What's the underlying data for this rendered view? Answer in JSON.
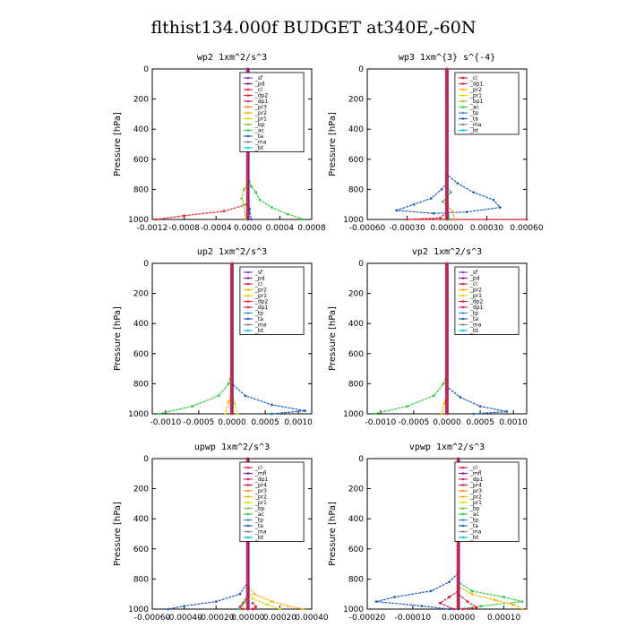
{
  "title": "flthist134.000f  BUDGET at340E,-60N",
  "series_colors": {
    "_sf": "#7f3fbf",
    "_pd": "#7a1fa2",
    "_cl": "#e8202a",
    "_mfl": "#7a1fa2",
    "_dp2": "#e8202a",
    "_dp1": "#d4226a",
    "_pr4": "#c81e3c",
    "_pr3": "#ff8c1a",
    "_pr2": "#ffb000",
    "_pr1": "#e6d800",
    "_bp1": "#9acd32",
    "_bp": "#7ccd32",
    "_ac": "#2ecc40",
    "_tp": "#3a8fd8",
    "_ta": "#1f5fbf",
    "_ma": "#888888",
    "_bt": "#00c8e8"
  },
  "chart_data": [
    {
      "type": "line",
      "title": "wp2  1xm^2/s^3",
      "ylabel": "Pressure  [hPa]",
      "xlim": [
        -0.0012,
        0.0008
      ],
      "ylim": [
        1000,
        0
      ],
      "xticks": [
        "-0.0012",
        "-0.0008",
        "-0.0004",
        "0.0000",
        "0.0004",
        "0.0008"
      ],
      "xtick_values": [
        -0.0012,
        -0.0008,
        -0.0004,
        0.0,
        0.0004,
        0.0008
      ],
      "yticks": [
        "0",
        "200",
        "400",
        "600",
        "800",
        "1000"
      ],
      "legend": [
        "_sf",
        "_pd",
        "_cl",
        "_dp2",
        "_dp1",
        "_pr3",
        "_pr2",
        "_pr1",
        "_bp",
        "_ac",
        "_ta",
        "_ma",
        "_bt"
      ],
      "legend_position": "top-right",
      "series": [
        {
          "name": "_cl",
          "points": [
            [
              0,
              0
            ],
            [
              0,
              700
            ],
            [
              -1e-05,
              900
            ],
            [
              -0.0003,
              945
            ],
            [
              -0.0008,
              975
            ],
            [
              -0.00115,
              1000
            ]
          ]
        },
        {
          "name": "_ac",
          "points": [
            [
              0,
              0
            ],
            [
              0,
              700
            ],
            [
              4e-05,
              780
            ],
            [
              0.0001,
              820
            ],
            [
              0.00015,
              870
            ],
            [
              0.0003,
              920
            ],
            [
              0.0005,
              965
            ],
            [
              0.0007,
              1000
            ]
          ]
        },
        {
          "name": "_bp",
          "points": [
            [
              0,
              0
            ],
            [
              0,
              750
            ],
            [
              -5e-05,
              800
            ],
            [
              -8e-05,
              860
            ],
            [
              -5e-05,
              900
            ],
            [
              -3e-05,
              1000
            ]
          ]
        },
        {
          "name": "_ta",
          "points": [
            [
              0,
              0
            ],
            [
              0,
              850
            ],
            [
              2e-05,
              930
            ],
            [
              4e-05,
              1000
            ]
          ]
        },
        {
          "name": "_pd",
          "points": [
            [
              0,
              0
            ],
            [
              0,
              1000
            ]
          ]
        }
      ]
    },
    {
      "type": "line",
      "title": "wp3  1xm^{3} s^{-4}",
      "ylabel": "Pressure  [hPa]",
      "xlim": [
        -0.0006,
        0.0006
      ],
      "ylim": [
        1000,
        0
      ],
      "xticks": [
        "-0.00060",
        "-0.00030",
        "0.00000",
        "0.00030",
        "0.00060"
      ],
      "xtick_values": [
        -0.0006,
        -0.0003,
        0.0,
        0.0003,
        0.0006
      ],
      "yticks": [
        "0",
        "200",
        "400",
        "600",
        "800",
        "1000"
      ],
      "legend": [
        "_cl",
        "_dp1",
        "_pr2",
        "_pr1",
        "_bp1",
        "_ac",
        "_tp",
        "_ta",
        "_ma",
        "_bt"
      ],
      "legend_position": "top-right",
      "series": [
        {
          "name": "_ta",
          "points": [
            [
              0,
              0
            ],
            [
              0,
              700
            ],
            [
              8e-05,
              760
            ],
            [
              0.0002,
              820
            ],
            [
              0.00035,
              870
            ],
            [
              0.0004,
              920
            ],
            [
              0.00015,
              950
            ],
            [
              -0.0001,
              960
            ],
            [
              -0.00038,
              940
            ],
            [
              -0.00025,
              900
            ],
            [
              -0.00012,
              860
            ],
            [
              -4e-05,
              800
            ],
            [
              0,
              760
            ]
          ]
        },
        {
          "name": "_cl",
          "points": [
            [
              0,
              0
            ],
            [
              0,
              950
            ],
            [
              -5e-05,
              990
            ],
            [
              -0.0003,
              1000
            ],
            [
              0.0003,
              1000
            ],
            [
              0.0006,
              1000
            ]
          ]
        },
        {
          "name": "_ac",
          "points": [
            [
              0,
              0
            ],
            [
              0,
              780
            ],
            [
              3e-05,
              820
            ],
            [
              0.0,
              850
            ],
            [
              -3e-05,
              880
            ],
            [
              0,
              920
            ],
            [
              2e-05,
              1000
            ]
          ]
        },
        {
          "name": "_pr3",
          "points": [
            [
              0,
              0
            ],
            [
              0,
              900
            ],
            [
              4e-05,
              950
            ],
            [
              6e-05,
              1000
            ]
          ]
        },
        {
          "name": "_cl",
          "points": [
            [
              0,
              0
            ],
            [
              0,
              1000
            ]
          ]
        }
      ]
    },
    {
      "type": "line",
      "title": "up2  1xm^2/s^3",
      "ylabel": "Pressure  [hPa]",
      "xlim": [
        -0.0012,
        0.0012
      ],
      "ylim": [
        1000,
        0
      ],
      "xticks": [
        "-0.0010",
        "-0.0005",
        "0.0000",
        "0.0005",
        "0.0010"
      ],
      "xtick_values": [
        -0.001,
        -0.0005,
        0.0,
        0.0005,
        0.001
      ],
      "yticks": [
        "0",
        "200",
        "400",
        "600",
        "800",
        "1000"
      ],
      "legend": [
        "_sf",
        "_pd",
        "_cl",
        "_pr2",
        "_pr1",
        "_dp2",
        "_dp1",
        "_tp",
        "_ta",
        "_ma",
        "_bt"
      ],
      "legend_position": "top-right",
      "series": [
        {
          "name": "_ac",
          "points": [
            [
              0,
              0
            ],
            [
              0,
              700
            ],
            [
              -5e-05,
              800
            ],
            [
              -0.0002,
              880
            ],
            [
              -0.0006,
              950
            ],
            [
              -0.0011,
              1000
            ]
          ]
        },
        {
          "name": "_ta",
          "points": [
            [
              0,
              0
            ],
            [
              0,
              800
            ],
            [
              0.0002,
              880
            ],
            [
              0.0006,
              940
            ],
            [
              0.0011,
              980
            ],
            [
              0.0006,
              1000
            ]
          ]
        },
        {
          "name": "_pr2",
          "points": [
            [
              0,
              0
            ],
            [
              0,
              850
            ],
            [
              -5e-05,
              920
            ],
            [
              -0.0001,
              1000
            ]
          ]
        },
        {
          "name": "_pr1",
          "points": [
            [
              0,
              0
            ],
            [
              0,
              870
            ],
            [
              4e-05,
              930
            ],
            [
              8e-05,
              1000
            ]
          ]
        },
        {
          "name": "_cl",
          "points": [
            [
              0,
              0
            ],
            [
              0,
              1000
            ]
          ]
        }
      ]
    },
    {
      "type": "line",
      "title": "vp2  1xm^2/s^3",
      "ylabel": "Pressure  [hPa]",
      "xlim": [
        -0.0012,
        0.0012
      ],
      "ylim": [
        1000,
        0
      ],
      "xticks": [
        "-0.0010",
        "-0.0005",
        "0.0000",
        "0.0005",
        "0.0010"
      ],
      "xtick_values": [
        -0.001,
        -0.0005,
        0.0,
        0.0005,
        0.001
      ],
      "yticks": [
        "0",
        "200",
        "400",
        "600",
        "800",
        "1000"
      ],
      "legend": [
        "_sf",
        "_pd",
        "_cl",
        "_pr2",
        "_pr1",
        "_dp2",
        "_dp1",
        "_tp",
        "_ta",
        "_ma",
        "_bt"
      ],
      "legend_position": "top-right",
      "series": [
        {
          "name": "_ac",
          "points": [
            [
              0,
              0
            ],
            [
              0,
              720
            ],
            [
              -5e-05,
              800
            ],
            [
              -0.0002,
              880
            ],
            [
              -0.0006,
              950
            ],
            [
              -0.0011,
              1000
            ]
          ]
        },
        {
          "name": "_ta",
          "points": [
            [
              0,
              0
            ],
            [
              0,
              820
            ],
            [
              0.0002,
              890
            ],
            [
              0.0005,
              950
            ],
            [
              0.0009,
              985
            ],
            [
              0.0004,
              1000
            ]
          ]
        },
        {
          "name": "_pr2",
          "points": [
            [
              0,
              0
            ],
            [
              0,
              860
            ],
            [
              -4e-05,
              930
            ],
            [
              -8e-05,
              1000
            ]
          ]
        },
        {
          "name": "_cl",
          "points": [
            [
              0,
              0
            ],
            [
              0,
              1000
            ]
          ]
        }
      ]
    },
    {
      "type": "line",
      "title": "upwp  1xm^2/s^3",
      "ylabel": "Pressure  [hPa]",
      "xlim": [
        -0.0006,
        0.0004
      ],
      "ylim": [
        1000,
        0
      ],
      "xticks": [
        "-0.00060",
        "-0.00040",
        "-0.00020",
        "0.00000",
        "0.00020",
        "0.00040"
      ],
      "xtick_values": [
        -0.0006,
        -0.0004,
        -0.0002,
        0.0,
        0.0002,
        0.0004
      ],
      "yticks": [
        "0",
        "200",
        "400",
        "600",
        "800",
        "1000"
      ],
      "legend": [
        "_cl",
        "_mfl",
        "_dp1",
        "_pr4",
        "_pr3",
        "_pr2",
        "_pr1",
        "_bp",
        "_ac",
        "_tp",
        "_ta",
        "_ma",
        "_bt"
      ],
      "legend_position": "top-right",
      "series": [
        {
          "name": "_ta",
          "points": [
            [
              0,
              0
            ],
            [
              0,
              820
            ],
            [
              -5e-05,
              900
            ],
            [
              -0.0002,
              950
            ],
            [
              -0.0004,
              980
            ],
            [
              -0.0005,
              1000
            ]
          ]
        },
        {
          "name": "_pr2",
          "points": [
            [
              0,
              0
            ],
            [
              0,
              850
            ],
            [
              4e-05,
              900
            ],
            [
              0.00015,
              950
            ],
            [
              0.00025,
              980
            ],
            [
              0.00035,
              1000
            ]
          ]
        },
        {
          "name": "_pr1",
          "points": [
            [
              0,
              0
            ],
            [
              0,
              880
            ],
            [
              3e-05,
              930
            ],
            [
              0.00012,
              970
            ],
            [
              0.0002,
              1000
            ]
          ]
        },
        {
          "name": "_cl",
          "points": [
            [
              0,
              0
            ],
            [
              0,
              900
            ],
            [
              -3e-05,
              960
            ],
            [
              -5e-05,
              985
            ],
            [
              -3e-05,
              1000
            ],
            [
              3e-05,
              1000
            ],
            [
              5e-05,
              985
            ],
            [
              3e-05,
              960
            ]
          ]
        },
        {
          "name": "_ac",
          "points": [
            [
              0,
              0
            ],
            [
              0,
              900
            ],
            [
              -2e-05,
              950
            ],
            [
              -5e-05,
              1000
            ]
          ]
        },
        {
          "name": "_mfl",
          "points": [
            [
              0,
              0
            ],
            [
              0,
              1000
            ]
          ]
        }
      ]
    },
    {
      "type": "line",
      "title": "vpwp  1xm^2/s^3",
      "ylabel": "Pressure  [hPa]",
      "xlim": [
        -0.0002,
        0.00015
      ],
      "ylim": [
        1000,
        0
      ],
      "xticks": [
        "-0.00020",
        "-0.00010",
        "0.00000",
        "0.00010"
      ],
      "xtick_values": [
        -0.0002,
        -0.0001,
        0.0,
        0.0001
      ],
      "yticks": [
        "0",
        "200",
        "400",
        "600",
        "800",
        "1000"
      ],
      "legend": [
        "_cl",
        "_mfl",
        "_dp1",
        "_pr4",
        "_pr3",
        "_pr2",
        "_pr1",
        "_bp",
        "_ac",
        "_tp",
        "_ta",
        "_ma",
        "_bt"
      ],
      "legend_position": "top-right",
      "series": [
        {
          "name": "_ta",
          "points": [
            [
              0,
              0
            ],
            [
              0,
              760
            ],
            [
              -2e-05,
              820
            ],
            [
              -6e-05,
              880
            ],
            [
              -0.00014,
              920
            ],
            [
              -0.00018,
              950
            ],
            [
              -8e-05,
              980
            ],
            [
              -2e-05,
              1000
            ]
          ]
        },
        {
          "name": "_ac",
          "points": [
            [
              0,
              0
            ],
            [
              0,
              820
            ],
            [
              3e-05,
              880
            ],
            [
              0.0001,
              920
            ],
            [
              0.00014,
              950
            ],
            [
              5e-05,
              980
            ],
            [
              0,
              1000
            ]
          ]
        },
        {
          "name": "_pr2",
          "points": [
            [
              0,
              0
            ],
            [
              0,
              850
            ],
            [
              3e-05,
              900
            ],
            [
              8e-05,
              940
            ],
            [
              0.00012,
              970
            ],
            [
              0.00014,
              1000
            ]
          ]
        },
        {
          "name": "_pr4",
          "points": [
            [
              0,
              0
            ],
            [
              0,
              880
            ],
            [
              -2e-05,
              920
            ],
            [
              -4e-05,
              960
            ],
            [
              -1e-05,
              1000
            ]
          ]
        },
        {
          "name": "_cl",
          "points": [
            [
              0,
              0
            ],
            [
              0,
              900
            ],
            [
              2e-05,
              950
            ],
            [
              4e-05,
              990
            ],
            [
              1e-05,
              1000
            ]
          ]
        },
        {
          "name": "_mfl",
          "points": [
            [
              0,
              0
            ],
            [
              0,
              1000
            ]
          ]
        }
      ]
    }
  ]
}
